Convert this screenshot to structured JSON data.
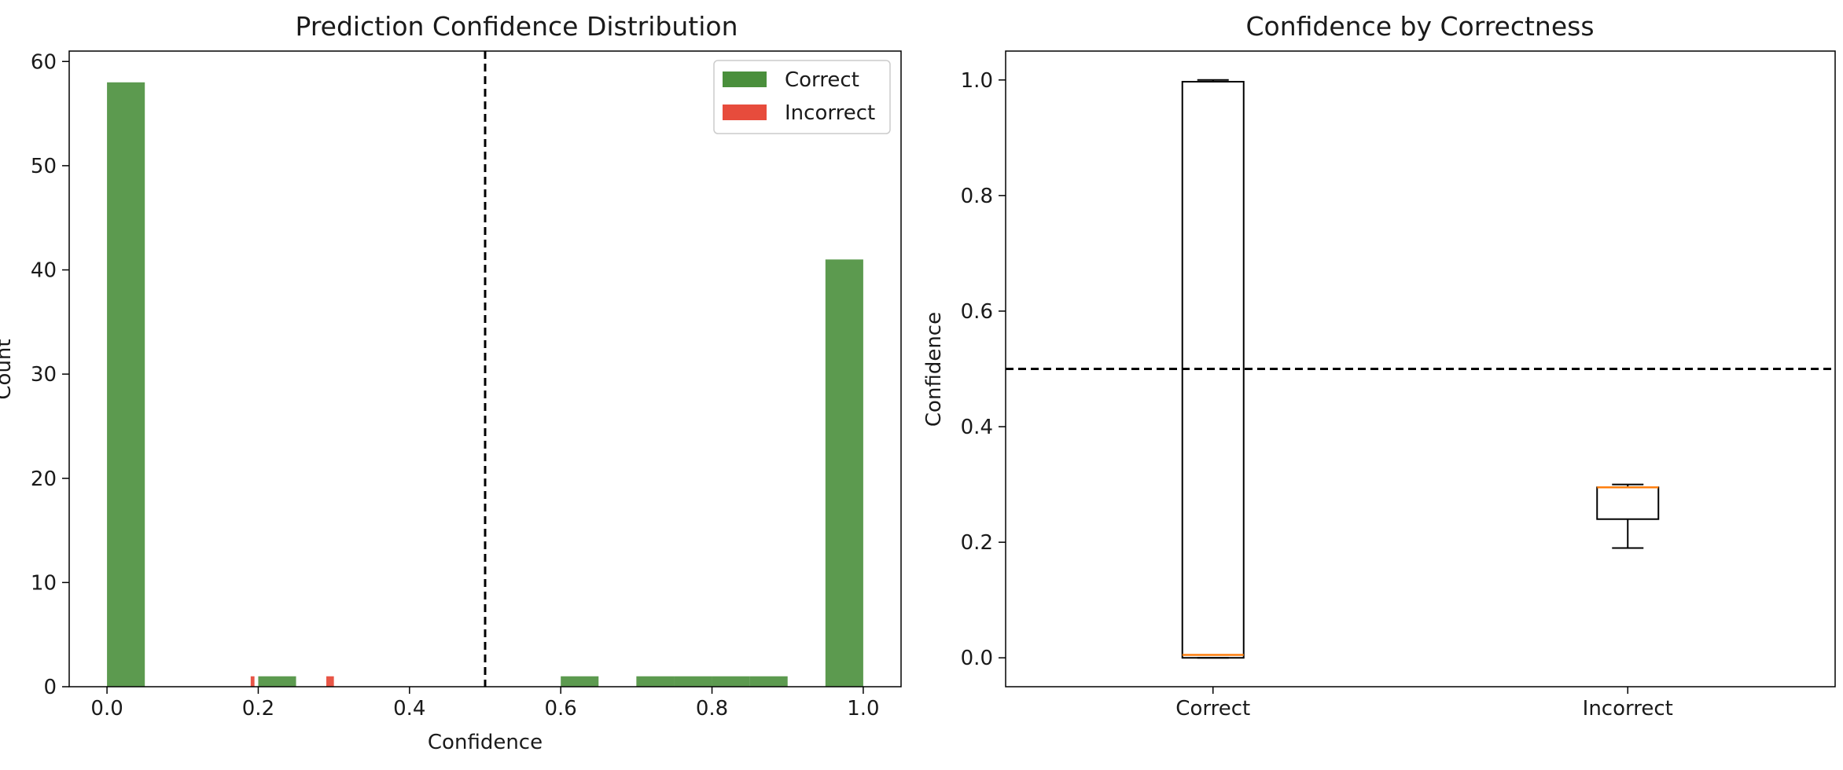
{
  "chart_data": [
    {
      "type": "histogram",
      "title": "Prediction Confidence Distribution",
      "xlabel": "Confidence",
      "ylabel": "Count",
      "xlim": [
        -0.05,
        1.05
      ],
      "ylim": [
        0,
        61
      ],
      "xticks": [
        0.0,
        0.2,
        0.4,
        0.6,
        0.8,
        1.0
      ],
      "xtick_labels": [
        "0.0",
        "0.2",
        "0.4",
        "0.6",
        "0.8",
        "1.0"
      ],
      "yticks": [
        0,
        10,
        20,
        30,
        40,
        50,
        60
      ],
      "ytick_labels": [
        "0",
        "10",
        "20",
        "30",
        "40",
        "50",
        "60"
      ],
      "threshold": 0.5,
      "legend_position": "top-right",
      "series": [
        {
          "name": "Correct",
          "color": "#4a8f3c",
          "bins": [
            {
              "x0": 0.0,
              "x1": 0.05,
              "count": 58
            },
            {
              "x0": 0.2,
              "x1": 0.25,
              "count": 1
            },
            {
              "x0": 0.6,
              "x1": 0.65,
              "count": 1
            },
            {
              "x0": 0.7,
              "x1": 0.75,
              "count": 1
            },
            {
              "x0": 0.75,
              "x1": 0.8,
              "count": 1
            },
            {
              "x0": 0.8,
              "x1": 0.85,
              "count": 1
            },
            {
              "x0": 0.85,
              "x1": 0.9,
              "count": 1
            },
            {
              "x0": 0.95,
              "x1": 1.0,
              "count": 41
            }
          ]
        },
        {
          "name": "Incorrect",
          "color": "#e74c3c",
          "bins": [
            {
              "x0": 0.19,
              "x1": 0.195,
              "count": 1
            },
            {
              "x0": 0.29,
              "x1": 0.3,
              "count": 1
            }
          ]
        }
      ]
    },
    {
      "type": "boxplot",
      "title": "Confidence by Correctness",
      "xlabel": "",
      "ylabel": "Confidence",
      "ylim": [
        -0.05,
        1.05
      ],
      "yticks": [
        0.0,
        0.2,
        0.4,
        0.6,
        0.8,
        1.0
      ],
      "ytick_labels": [
        "0.0",
        "0.2",
        "0.4",
        "0.6",
        "0.8",
        "1.0"
      ],
      "threshold": 0.5,
      "categories": [
        "Correct",
        "Incorrect"
      ],
      "median_color": "#ff7f0e",
      "boxes": [
        {
          "name": "Correct",
          "whisker_low": 0.0,
          "q1": 0.0,
          "median": 0.005,
          "q3": 0.997,
          "whisker_high": 1.0
        },
        {
          "name": "Incorrect",
          "whisker_low": 0.19,
          "q1": 0.24,
          "median": 0.295,
          "q3": 0.295,
          "whisker_high": 0.3
        }
      ]
    }
  ]
}
